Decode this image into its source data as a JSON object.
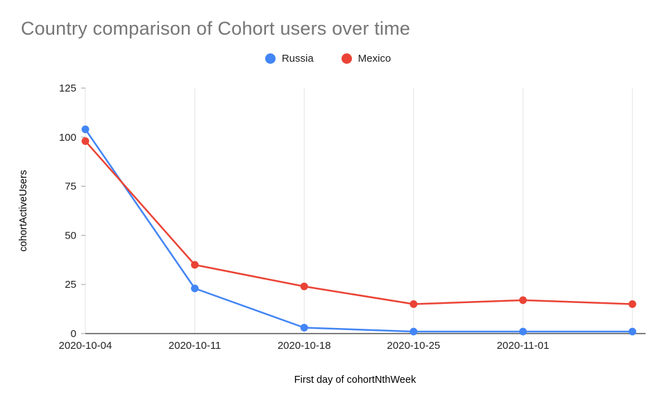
{
  "chart": {
    "title": "Country comparison of Cohort users over time",
    "xlabel": "First day of cohortNthWeek",
    "ylabel": "cohortActiveUsers"
  },
  "chart_data": {
    "type": "line",
    "title": "Country comparison of Cohort users over time",
    "xlabel": "First day of cohortNthWeek",
    "ylabel": "cohortActiveUsers",
    "x_labels": [
      "2020-10-04",
      "2020-10-11",
      "2020-10-18",
      "2020-10-25",
      "2020-11-01",
      ""
    ],
    "series": [
      {
        "name": "Russia",
        "color": "#4285F4",
        "values": [
          104,
          23,
          3,
          1,
          1,
          1
        ]
      },
      {
        "name": "Mexico",
        "color": "#EA4335",
        "values": [
          98,
          35,
          24,
          15,
          17,
          15
        ]
      }
    ],
    "y_ticks": [
      0,
      25,
      50,
      75,
      100,
      125
    ],
    "ylim": [
      0,
      125
    ],
    "grid": "vertical",
    "legend_position": "top-center",
    "colors": {
      "grid": "#e3e3e3",
      "axis": "#333333",
      "tick_text": "#212121",
      "title_text": "#757575"
    }
  }
}
